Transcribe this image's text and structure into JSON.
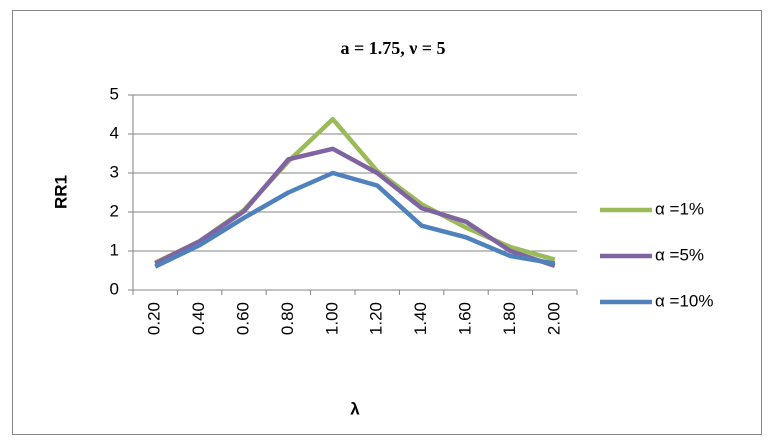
{
  "chart_data": {
    "type": "line",
    "title": "a = 1.75, ν = 5",
    "x_label": "λ",
    "y_label": "RR1",
    "categories": [
      "0.20",
      "0.40",
      "0.60",
      "0.80",
      "1.00",
      "1.20",
      "1.40",
      "1.60",
      "1.80",
      "2.00"
    ],
    "series": [
      {
        "name": "α =1%",
        "color": "#9bbb59",
        "values": [
          0.7,
          1.25,
          2.05,
          3.3,
          4.38,
          3.05,
          2.2,
          1.6,
          1.1,
          0.78
        ]
      },
      {
        "name": "α =5%",
        "color": "#8064a2",
        "values": [
          0.68,
          1.25,
          2.02,
          3.35,
          3.62,
          3.0,
          2.1,
          1.75,
          1.0,
          0.62
        ]
      },
      {
        "name": "α =10%",
        "color": "#4f81bd",
        "values": [
          0.6,
          1.15,
          1.85,
          2.5,
          3.0,
          2.68,
          1.65,
          1.35,
          0.87,
          0.68
        ]
      }
    ],
    "ylim": [
      0,
      5
    ],
    "yticks": [
      0,
      1,
      2,
      3,
      4,
      5
    ],
    "grid": true,
    "legend": "right"
  }
}
